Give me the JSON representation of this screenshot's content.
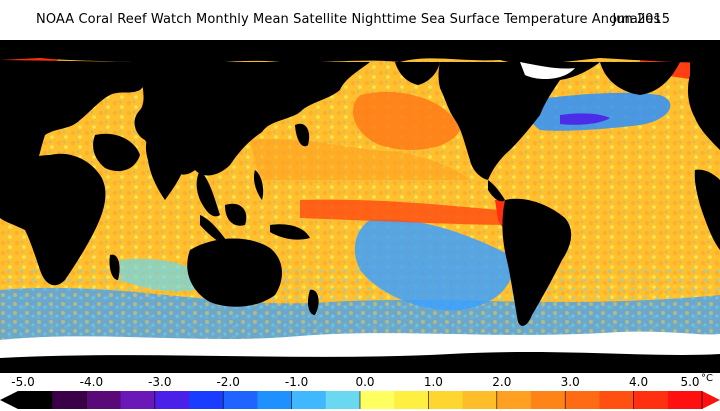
{
  "title": {
    "main": "NOAA Coral Reef Watch Monthly Mean Satellite Nighttime Sea Surface Temperature Anomalies",
    "date": "Jun 2015"
  },
  "legend": {
    "ticks": [
      "-5.0",
      "-4.0",
      "-3.0",
      "-2.0",
      "-1.0",
      "0.0",
      "1.0",
      "2.0",
      "3.0",
      "4.0",
      "5.0"
    ],
    "unit": "°C",
    "range": [
      -5.0,
      5.0
    ],
    "colors": [
      "#000000",
      "#3a0048",
      "#5a0a78",
      "#6a18b8",
      "#4b20e8",
      "#1a3cff",
      "#2064ff",
      "#1e90ff",
      "#40b8ff",
      "#6ad8f0",
      "#ffff60",
      "#ffef40",
      "#ffd630",
      "#ffbe28",
      "#ffa020",
      "#ff8418",
      "#ff6a14",
      "#ff5012",
      "#ff3010",
      "#ff1010"
    ]
  },
  "map": {
    "land_color": "#000000",
    "ice_color": "#ffffff",
    "dominant_anomaly_color": "#ffc030",
    "cool_anomaly_color": "#3ca0ff"
  }
}
